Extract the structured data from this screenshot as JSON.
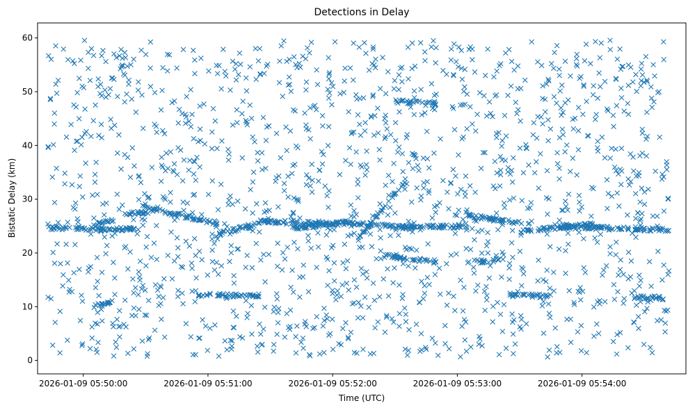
{
  "chart_data": {
    "type": "scatter",
    "title": "Detections in Delay",
    "xlabel": "Time (UTC)",
    "ylabel": "Bistatic Delay (km)",
    "marker": "x",
    "color": "#1f77b4",
    "grid": false,
    "legend": "none",
    "xlim": [
      "2026-01-09 05:49:38",
      "2026-01-09 05:54:50"
    ],
    "ylim": [
      -2.5,
      62.8
    ],
    "x_ticks": [
      "2026-01-09 05:50:00",
      "2026-01-09 05:51:00",
      "2026-01-09 05:52:00",
      "2026-01-09 05:53:00",
      "2026-01-09 05:54:00"
    ],
    "y_ticks": [
      0,
      10,
      20,
      30,
      40,
      50,
      60
    ],
    "series_time_range": [
      "2026-01-09 05:49:43",
      "2026-01-09 05:54:42"
    ],
    "tracks": [
      {
        "from": [
          "2026-01-09 05:49:43",
          24.6
        ],
        "to": [
          "2026-01-09 05:50:25",
          24.4
        ]
      },
      {
        "from": [
          "2026-01-09 05:50:05",
          25.0
        ],
        "to": [
          "2026-01-09 05:50:15",
          26.2
        ]
      },
      {
        "from": [
          "2026-01-09 05:50:20",
          27.2
        ],
        "to": [
          "2026-01-09 05:50:35",
          27.8
        ]
      },
      {
        "from": [
          "2026-01-09 05:50:28",
          28.5
        ],
        "to": [
          "2026-01-09 05:51:05",
          25.5
        ]
      },
      {
        "from": [
          "2026-01-09 05:51:05",
          23.5
        ],
        "to": [
          "2026-01-09 05:51:30",
          26.0
        ]
      },
      {
        "from": [
          "2026-01-09 05:51:25",
          25.8
        ],
        "to": [
          "2026-01-09 05:52:05",
          25.4
        ]
      },
      {
        "from": [
          "2026-01-09 05:51:40",
          24.6
        ],
        "to": [
          "2026-01-09 05:52:10",
          25.9
        ]
      },
      {
        "from": [
          "2026-01-09 05:52:05",
          25.6
        ],
        "to": [
          "2026-01-09 05:52:40",
          24.6
        ]
      },
      {
        "from": [
          "2026-01-09 05:52:35",
          24.8
        ],
        "to": [
          "2026-01-09 05:53:05",
          25.0
        ]
      },
      {
        "from": [
          "2026-01-09 05:53:05",
          27.0
        ],
        "to": [
          "2026-01-09 05:53:35",
          25.2
        ]
      },
      {
        "from": [
          "2026-01-09 05:53:30",
          24.0
        ],
        "to": [
          "2026-01-09 05:54:05",
          25.4
        ]
      },
      {
        "from": [
          "2026-01-09 05:53:45",
          25.0
        ],
        "to": [
          "2026-01-09 05:54:42",
          24.2
        ]
      },
      {
        "from": [
          "2026-01-09 05:52:30",
          48.2
        ],
        "to": [
          "2026-01-09 05:52:50",
          47.8
        ]
      },
      {
        "from": [
          "2026-01-09 05:52:25",
          19.5
        ],
        "to": [
          "2026-01-09 05:52:50",
          18.2
        ]
      },
      {
        "from": [
          "2026-01-09 05:53:05",
          18.2
        ],
        "to": [
          "2026-01-09 05:53:20",
          18.8
        ]
      },
      {
        "from": [
          "2026-01-09 05:50:55",
          12.2
        ],
        "to": [
          "2026-01-09 05:51:25",
          12.0
        ]
      },
      {
        "from": [
          "2026-01-09 05:53:25",
          12.2
        ],
        "to": [
          "2026-01-09 05:53:45",
          12.0
        ]
      },
      {
        "from": [
          "2026-01-09 05:52:10",
          21.5
        ],
        "to": [
          "2026-01-09 05:52:35",
          33.5
        ]
      },
      {
        "from": [
          "2026-01-09 05:50:05",
          10.0
        ],
        "to": [
          "2026-01-09 05:50:15",
          11.0
        ]
      },
      {
        "from": [
          "2026-01-09 05:54:25",
          11.8
        ],
        "to": [
          "2026-01-09 05:54:40",
          11.6
        ]
      }
    ]
  }
}
